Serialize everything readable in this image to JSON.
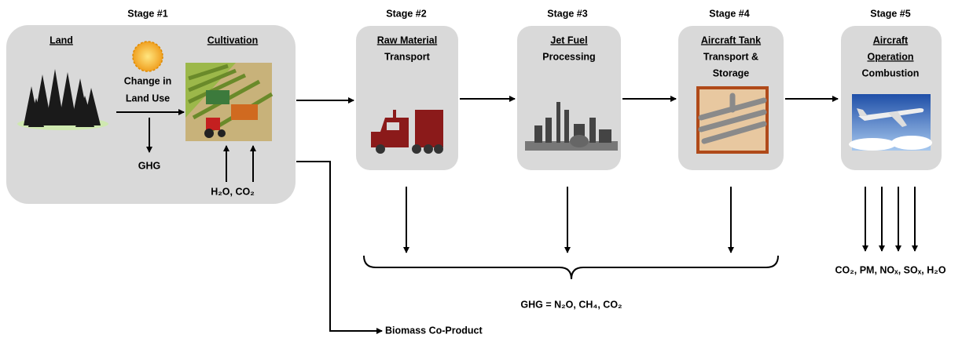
{
  "stage1": {
    "label": "Stage #1",
    "land": "Land",
    "cultivation": "Cultivation",
    "land_use_change": [
      "Change in",
      "Land Use"
    ],
    "emission": "GHG",
    "inputs": "H₂O, CO₂"
  },
  "stages": [
    {
      "label": "Stage #2",
      "title": [
        "Raw Material"
      ],
      "subtitle": [
        "Transport"
      ]
    },
    {
      "label": "Stage #3",
      "title": [
        "Jet Fuel"
      ],
      "subtitle": [
        "Processing"
      ]
    },
    {
      "label": "Stage #4",
      "title": [
        "Aircraft Tank"
      ],
      "subtitle": [
        "Transport &",
        "Storage"
      ]
    },
    {
      "label": "Stage #5",
      "title": [
        "Aircraft",
        "Operation"
      ],
      "subtitle": [
        "Combustion"
      ]
    }
  ],
  "process_emissions": "GHG = N₂O, CH₄, CO₂",
  "combustion_emissions": "CO₂, PM, NOₓ, SOₓ, H₂O",
  "co_product": "Biomass Co-Product"
}
